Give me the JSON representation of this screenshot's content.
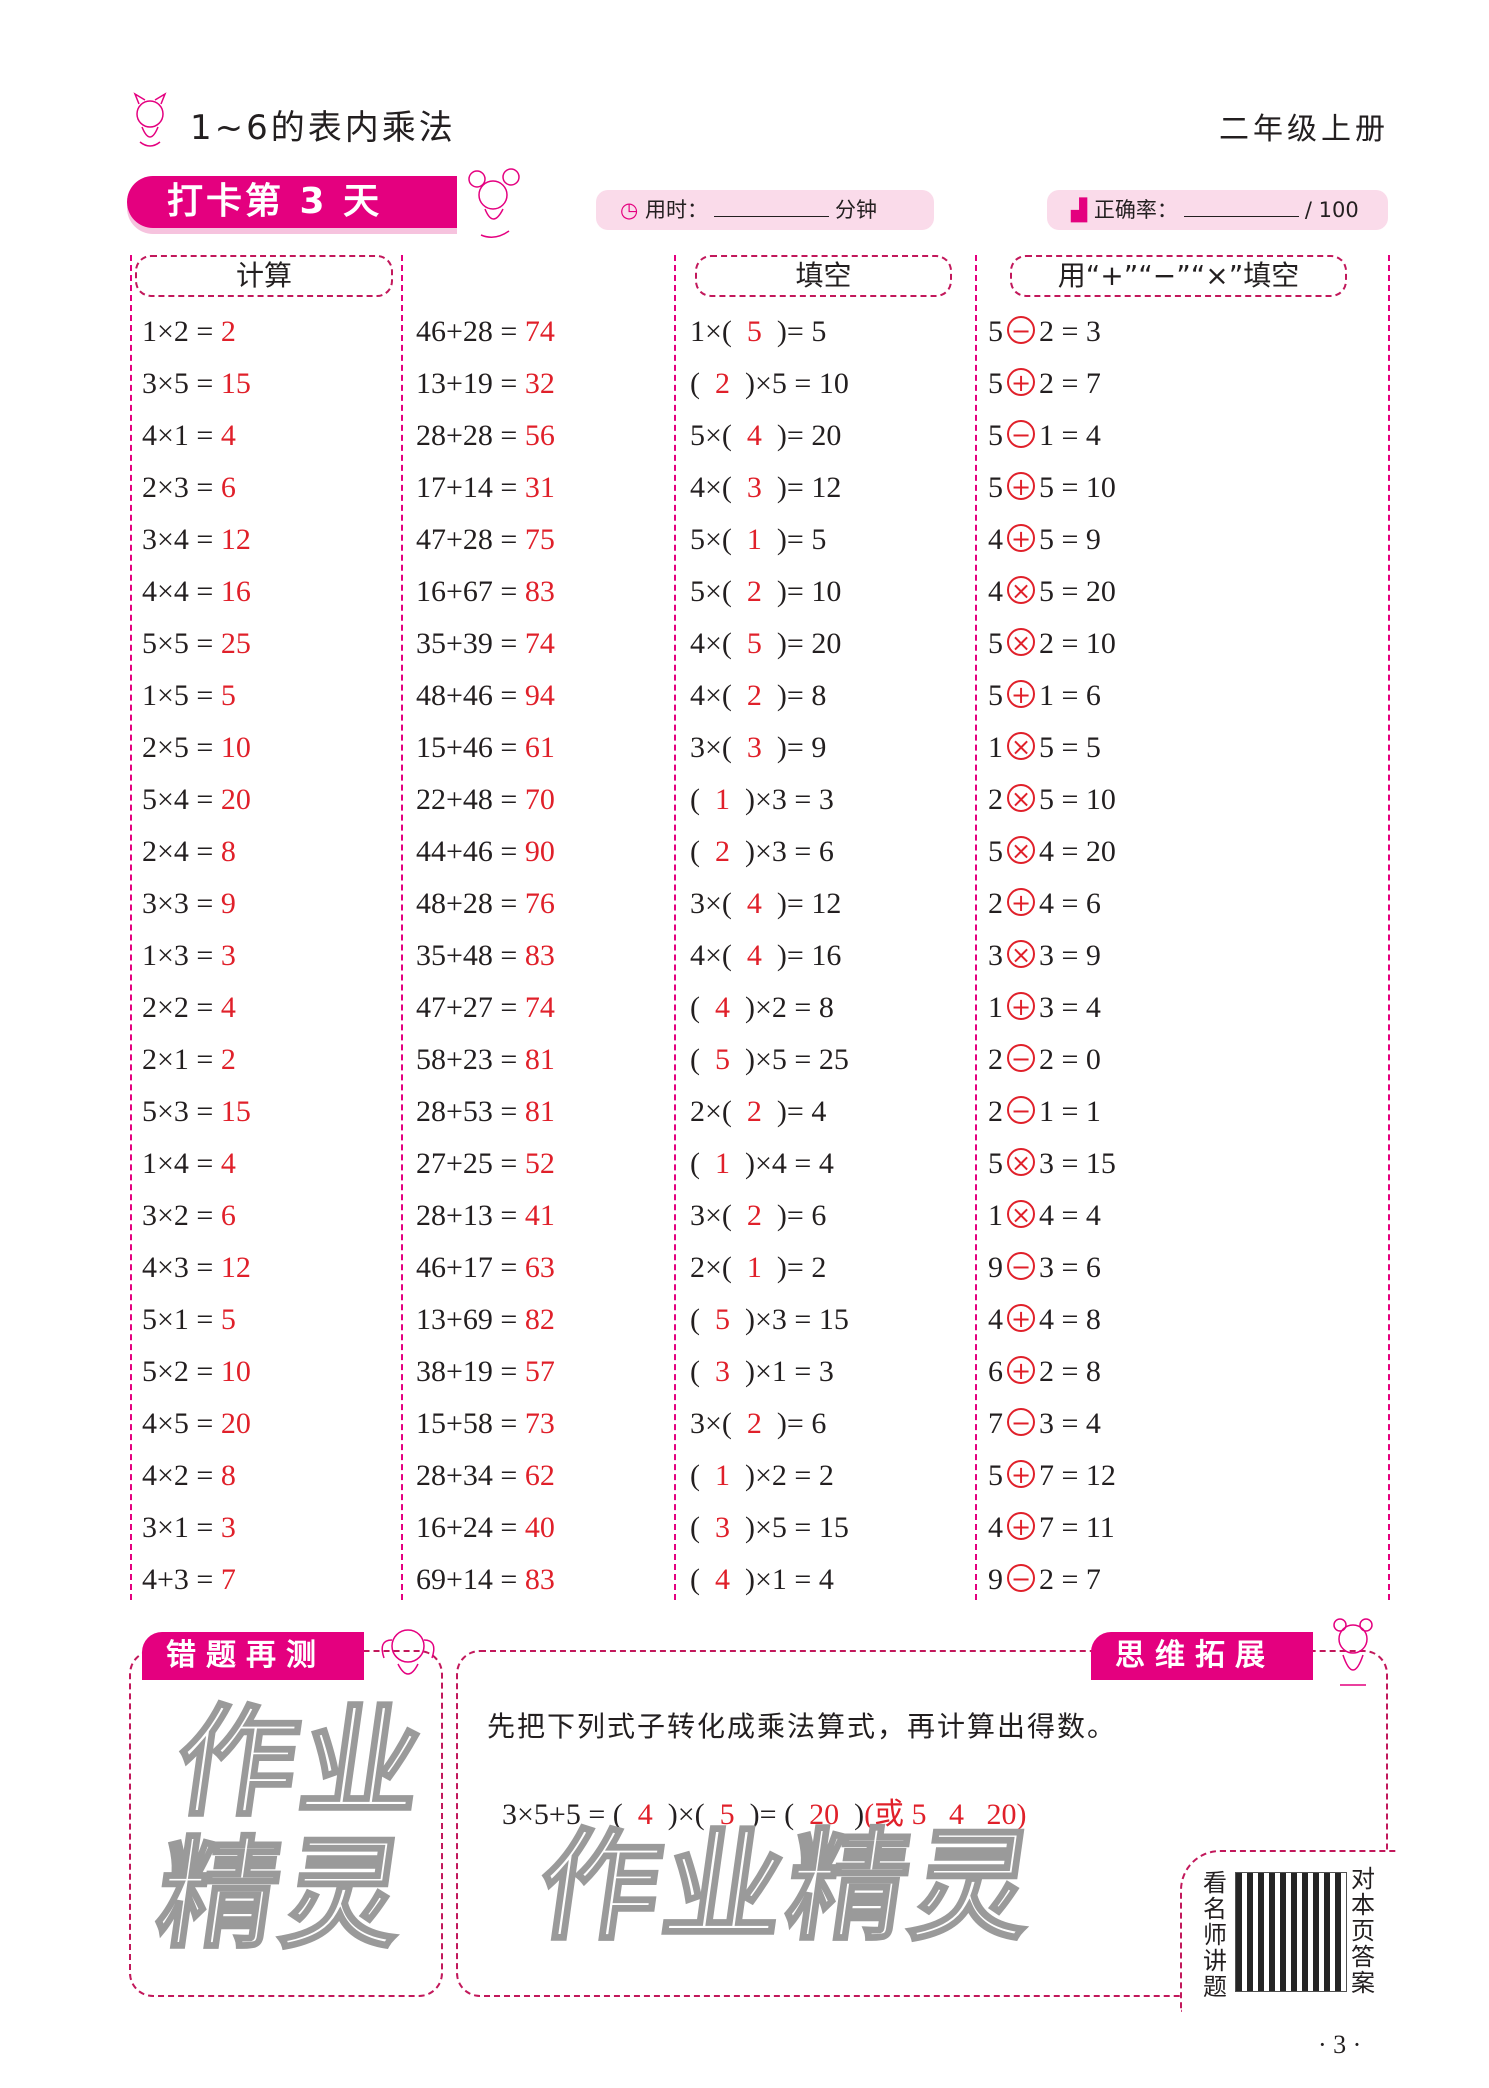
{
  "header": {
    "title": "1~6的表内乘法",
    "grade": "二年级上册"
  },
  "banner": {
    "label": "打卡第 3 天"
  },
  "time_pill": {
    "label": "用时：",
    "unit": "分钟"
  },
  "score_pill": {
    "label": "正确率：",
    "total": "/ 100"
  },
  "sections": {
    "calc": "计算",
    "fill": "填空",
    "ops": "用“+”“−”“×”填空"
  },
  "col1": [
    {
      "q": "1×2 =",
      "a": "2"
    },
    {
      "q": "3×5 =",
      "a": "15"
    },
    {
      "q": "4×1 =",
      "a": "4"
    },
    {
      "q": "2×3 =",
      "a": "6"
    },
    {
      "q": "3×4 =",
      "a": "12"
    },
    {
      "q": "4×4 =",
      "a": "16"
    },
    {
      "q": "5×5 =",
      "a": "25"
    },
    {
      "q": "1×5 =",
      "a": "5"
    },
    {
      "q": "2×5 =",
      "a": "10"
    },
    {
      "q": "5×4 =",
      "a": "20"
    },
    {
      "q": "2×4 =",
      "a": "8"
    },
    {
      "q": "3×3 =",
      "a": "9"
    },
    {
      "q": "1×3 =",
      "a": "3"
    },
    {
      "q": "2×2 =",
      "a": "4"
    },
    {
      "q": "2×1 =",
      "a": "2"
    },
    {
      "q": "5×3 =",
      "a": "15"
    },
    {
      "q": "1×4 =",
      "a": "4"
    },
    {
      "q": "3×2 =",
      "a": "6"
    },
    {
      "q": "4×3 =",
      "a": "12"
    },
    {
      "q": "5×1 =",
      "a": "5"
    },
    {
      "q": "5×2 =",
      "a": "10"
    },
    {
      "q": "4×5 =",
      "a": "20"
    },
    {
      "q": "4×2 =",
      "a": "8"
    },
    {
      "q": "3×1 =",
      "a": "3"
    },
    {
      "q": "4+3 =",
      "a": "7"
    }
  ],
  "col2": [
    {
      "q": "46+28 =",
      "a": "74"
    },
    {
      "q": "13+19 =",
      "a": "32"
    },
    {
      "q": "28+28 =",
      "a": "56"
    },
    {
      "q": "17+14 =",
      "a": "31"
    },
    {
      "q": "47+28 =",
      "a": "75"
    },
    {
      "q": "16+67 =",
      "a": "83"
    },
    {
      "q": "35+39 =",
      "a": "74"
    },
    {
      "q": "48+46 =",
      "a": "94"
    },
    {
      "q": "15+46 =",
      "a": "61"
    },
    {
      "q": "22+48 =",
      "a": "70"
    },
    {
      "q": "44+46 =",
      "a": "90"
    },
    {
      "q": "48+28 =",
      "a": "76"
    },
    {
      "q": "35+48 =",
      "a": "83"
    },
    {
      "q": "47+27 =",
      "a": "74"
    },
    {
      "q": "58+23 =",
      "a": "81"
    },
    {
      "q": "28+53 =",
      "a": "81"
    },
    {
      "q": "27+25 =",
      "a": "52"
    },
    {
      "q": "28+13 =",
      "a": "41"
    },
    {
      "q": "46+17 =",
      "a": "63"
    },
    {
      "q": "13+69 =",
      "a": "82"
    },
    {
      "q": "38+19 =",
      "a": "57"
    },
    {
      "q": "15+58 =",
      "a": "73"
    },
    {
      "q": "28+34 =",
      "a": "62"
    },
    {
      "q": "16+24 =",
      "a": "40"
    },
    {
      "q": "69+14 =",
      "a": "83"
    }
  ],
  "col3": [
    {
      "pre": "1×(  ",
      "a": "5",
      "post": "  )= 5"
    },
    {
      "pre": "(  ",
      "a": "2",
      "post": "  )×5 = 10"
    },
    {
      "pre": "5×(  ",
      "a": "4",
      "post": "  )= 20"
    },
    {
      "pre": "4×(  ",
      "a": "3",
      "post": "  )= 12"
    },
    {
      "pre": "5×(  ",
      "a": "1",
      "post": "  )= 5"
    },
    {
      "pre": "5×(  ",
      "a": "2",
      "post": "  )= 10"
    },
    {
      "pre": "4×(  ",
      "a": "5",
      "post": "  )= 20"
    },
    {
      "pre": "4×(  ",
      "a": "2",
      "post": "  )= 8"
    },
    {
      "pre": "3×(  ",
      "a": "3",
      "post": "  )= 9"
    },
    {
      "pre": "(  ",
      "a": "1",
      "post": "  )×3 = 3"
    },
    {
      "pre": "(  ",
      "a": "2",
      "post": "  )×3 = 6"
    },
    {
      "pre": "3×(  ",
      "a": "4",
      "post": "  )= 12"
    },
    {
      "pre": "4×(  ",
      "a": "4",
      "post": "  )= 16"
    },
    {
      "pre": "(  ",
      "a": "4",
      "post": "  )×2 = 8"
    },
    {
      "pre": "(  ",
      "a": "5",
      "post": "  )×5 = 25"
    },
    {
      "pre": "2×(  ",
      "a": "2",
      "post": "  )= 4"
    },
    {
      "pre": "(  ",
      "a": "1",
      "post": "  )×4 = 4"
    },
    {
      "pre": "3×(  ",
      "a": "2",
      "post": "  )= 6"
    },
    {
      "pre": "2×(  ",
      "a": "1",
      "post": "  )= 2"
    },
    {
      "pre": "(  ",
      "a": "5",
      "post": "  )×3 = 15"
    },
    {
      "pre": "(  ",
      "a": "3",
      "post": "  )×1 = 3"
    },
    {
      "pre": "3×(  ",
      "a": "2",
      "post": "  )= 6"
    },
    {
      "pre": "(  ",
      "a": "1",
      "post": "  )×2 = 2"
    },
    {
      "pre": "(  ",
      "a": "3",
      "post": "  )×5 = 15"
    },
    {
      "pre": "(  ",
      "a": "4",
      "post": "  )×1 = 4"
    }
  ],
  "col4": [
    {
      "l": "5",
      "op": "−",
      "r": "2 = 3"
    },
    {
      "l": "5",
      "op": "+",
      "r": "2 = 7"
    },
    {
      "l": "5",
      "op": "−",
      "r": "1 = 4"
    },
    {
      "l": "5",
      "op": "+",
      "r": "5 = 10"
    },
    {
      "l": "4",
      "op": "+",
      "r": "5 = 9"
    },
    {
      "l": "4",
      "op": "×",
      "r": "5 = 20"
    },
    {
      "l": "5",
      "op": "×",
      "r": "2 = 10"
    },
    {
      "l": "5",
      "op": "+",
      "r": "1 = 6"
    },
    {
      "l": "1",
      "op": "×",
      "r": "5 = 5"
    },
    {
      "l": "2",
      "op": "×",
      "r": "5 = 10"
    },
    {
      "l": "5",
      "op": "×",
      "r": "4 = 20"
    },
    {
      "l": "2",
      "op": "+",
      "r": "4 = 6"
    },
    {
      "l": "3",
      "op": "×",
      "r": "3 = 9"
    },
    {
      "l": "1",
      "op": "+",
      "r": "3 = 4"
    },
    {
      "l": "2",
      "op": "−",
      "r": "2 = 0"
    },
    {
      "l": "2",
      "op": "−",
      "r": "1 = 1"
    },
    {
      "l": "5",
      "op": "×",
      "r": "3 = 15"
    },
    {
      "l": "1",
      "op": "×",
      "r": "4 = 4"
    },
    {
      "l": "9",
      "op": "−",
      "r": "3 = 6"
    },
    {
      "l": "4",
      "op": "+",
      "r": "4 = 8"
    },
    {
      "l": "6",
      "op": "+",
      "r": "2 = 8"
    },
    {
      "l": "7",
      "op": "−",
      "r": "3 = 4"
    },
    {
      "l": "5",
      "op": "+",
      "r": "7 = 12"
    },
    {
      "l": "4",
      "op": "+",
      "r": "7 = 11"
    },
    {
      "l": "9",
      "op": "−",
      "r": "2 = 7"
    }
  ],
  "retest": {
    "label": "错题再测"
  },
  "extension": {
    "label": "思维拓展",
    "instruction": "先把下列式子转化成乘法算式，再计算出得数。",
    "expr": "3×5+5 = (",
    "a1": "4",
    "mid1": ")×(",
    "a2": "5",
    "mid2": ")= (",
    "a3": "20",
    "end": ")",
    "alt": "(或 5   4   20)"
  },
  "qr": {
    "left": "看名师讲题",
    "right": "对本页答案"
  },
  "watermark": "作业精灵",
  "page_number": "· 3 ·",
  "colors": {
    "accent": "#e4007f",
    "answer": "#e0202a",
    "pill": "#fadbea"
  }
}
